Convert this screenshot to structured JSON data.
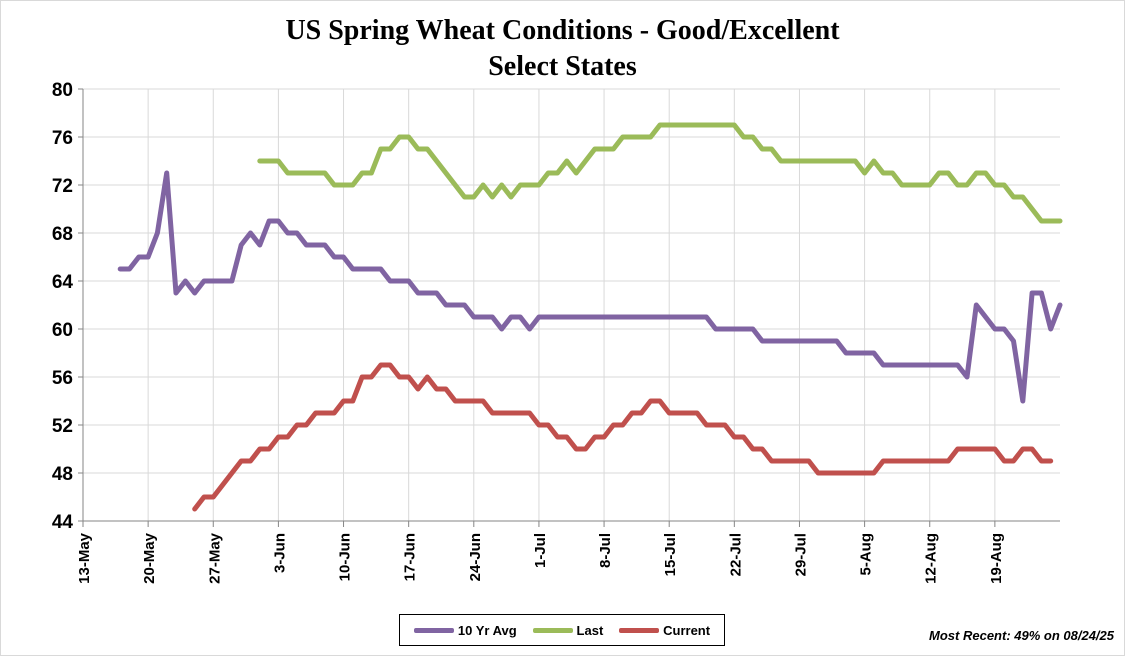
{
  "colors": {
    "avg10": "#8064a2",
    "last": "#9bbb59",
    "current": "#c0504d",
    "grid": "#d9d9d9",
    "axis": "#868686"
  },
  "note": "Most Recent: 49% on 08/24/25",
  "chart_data": {
    "type": "line",
    "title": "US Spring Wheat Conditions - Good/Excellent",
    "subtitle": "Select States",
    "xlabel": "",
    "ylabel": "",
    "x_is_days_from_may13": true,
    "xlim": [
      0,
      104
    ],
    "ylim": [
      44,
      80
    ],
    "y_ticks": [
      44,
      48,
      52,
      56,
      60,
      64,
      68,
      72,
      76,
      80
    ],
    "x_ticks": [
      {
        "label": "13-May",
        "day": 0
      },
      {
        "label": "20-May",
        "day": 7
      },
      {
        "label": "27-May",
        "day": 14
      },
      {
        "label": "3-Jun",
        "day": 21
      },
      {
        "label": "10-Jun",
        "day": 28
      },
      {
        "label": "17-Jun",
        "day": 35
      },
      {
        "label": "24-Jun",
        "day": 42
      },
      {
        "label": "1-Jul",
        "day": 49
      },
      {
        "label": "8-Jul",
        "day": 56
      },
      {
        "label": "15-Jul",
        "day": 63
      },
      {
        "label": "22-Jul",
        "day": 70
      },
      {
        "label": "29-Jul",
        "day": 77
      },
      {
        "label": "5-Aug",
        "day": 84
      },
      {
        "label": "12-Aug",
        "day": 91
      },
      {
        "label": "19-Aug",
        "day": 98
      }
    ],
    "grid": true,
    "legend_position": "bottom",
    "series": [
      {
        "name": "10 Yr Avg",
        "key": "avg10",
        "points": [
          [
            4,
            65
          ],
          [
            5,
            65
          ],
          [
            6,
            66
          ],
          [
            7,
            66
          ],
          [
            8,
            68
          ],
          [
            9,
            73
          ],
          [
            10,
            63
          ],
          [
            11,
            64
          ],
          [
            12,
            63
          ],
          [
            13,
            64
          ],
          [
            14,
            64
          ],
          [
            15,
            64
          ],
          [
            16,
            64
          ],
          [
            17,
            67
          ],
          [
            18,
            68
          ],
          [
            19,
            67
          ],
          [
            20,
            69
          ],
          [
            21,
            69
          ],
          [
            22,
            68
          ],
          [
            23,
            68
          ],
          [
            24,
            67
          ],
          [
            25,
            67
          ],
          [
            26,
            67
          ],
          [
            27,
            66
          ],
          [
            28,
            66
          ],
          [
            29,
            65
          ],
          [
            30,
            65
          ],
          [
            31,
            65
          ],
          [
            32,
            65
          ],
          [
            33,
            64
          ],
          [
            34,
            64
          ],
          [
            35,
            64
          ],
          [
            36,
            63
          ],
          [
            37,
            63
          ],
          [
            38,
            63
          ],
          [
            39,
            62
          ],
          [
            40,
            62
          ],
          [
            41,
            62
          ],
          [
            42,
            61
          ],
          [
            43,
            61
          ],
          [
            44,
            61
          ],
          [
            45,
            60
          ],
          [
            46,
            61
          ],
          [
            47,
            61
          ],
          [
            48,
            60
          ],
          [
            49,
            61
          ],
          [
            50,
            61
          ],
          [
            51,
            61
          ],
          [
            52,
            61
          ],
          [
            53,
            61
          ],
          [
            54,
            61
          ],
          [
            55,
            61
          ],
          [
            56,
            61
          ],
          [
            57,
            61
          ],
          [
            58,
            61
          ],
          [
            59,
            61
          ],
          [
            60,
            61
          ],
          [
            61,
            61
          ],
          [
            62,
            61
          ],
          [
            63,
            61
          ],
          [
            64,
            61
          ],
          [
            65,
            61
          ],
          [
            66,
            61
          ],
          [
            67,
            61
          ],
          [
            68,
            60
          ],
          [
            69,
            60
          ],
          [
            70,
            60
          ],
          [
            71,
            60
          ],
          [
            72,
            60
          ],
          [
            73,
            59
          ],
          [
            74,
            59
          ],
          [
            75,
            59
          ],
          [
            76,
            59
          ],
          [
            77,
            59
          ],
          [
            78,
            59
          ],
          [
            79,
            59
          ],
          [
            80,
            59
          ],
          [
            81,
            59
          ],
          [
            82,
            58
          ],
          [
            83,
            58
          ],
          [
            84,
            58
          ],
          [
            85,
            58
          ],
          [
            86,
            57
          ],
          [
            87,
            57
          ],
          [
            88,
            57
          ],
          [
            89,
            57
          ],
          [
            90,
            57
          ],
          [
            91,
            57
          ],
          [
            92,
            57
          ],
          [
            93,
            57
          ],
          [
            94,
            57
          ],
          [
            95,
            56
          ],
          [
            96,
            62
          ],
          [
            97,
            61
          ],
          [
            98,
            60
          ],
          [
            99,
            60
          ],
          [
            100,
            59
          ],
          [
            101,
            54
          ],
          [
            102,
            63
          ],
          [
            103,
            63
          ],
          [
            104,
            60
          ],
          [
            105,
            62
          ]
        ]
      },
      {
        "name": "Last",
        "key": "last",
        "points": [
          [
            19,
            74
          ],
          [
            20,
            74
          ],
          [
            21,
            74
          ],
          [
            22,
            73
          ],
          [
            23,
            73
          ],
          [
            24,
            73
          ],
          [
            25,
            73
          ],
          [
            26,
            73
          ],
          [
            27,
            72
          ],
          [
            28,
            72
          ],
          [
            29,
            72
          ],
          [
            30,
            73
          ],
          [
            31,
            73
          ],
          [
            32,
            75
          ],
          [
            33,
            75
          ],
          [
            34,
            76
          ],
          [
            35,
            76
          ],
          [
            36,
            75
          ],
          [
            37,
            75
          ],
          [
            38,
            74
          ],
          [
            39,
            73
          ],
          [
            40,
            72
          ],
          [
            41,
            71
          ],
          [
            42,
            71
          ],
          [
            43,
            72
          ],
          [
            44,
            71
          ],
          [
            45,
            72
          ],
          [
            46,
            71
          ],
          [
            47,
            72
          ],
          [
            48,
            72
          ],
          [
            49,
            72
          ],
          [
            50,
            73
          ],
          [
            51,
            73
          ],
          [
            52,
            74
          ],
          [
            53,
            73
          ],
          [
            54,
            74
          ],
          [
            55,
            75
          ],
          [
            56,
            75
          ],
          [
            57,
            75
          ],
          [
            58,
            76
          ],
          [
            59,
            76
          ],
          [
            60,
            76
          ],
          [
            61,
            76
          ],
          [
            62,
            77
          ],
          [
            63,
            77
          ],
          [
            64,
            77
          ],
          [
            65,
            77
          ],
          [
            66,
            77
          ],
          [
            67,
            77
          ],
          [
            68,
            77
          ],
          [
            69,
            77
          ],
          [
            70,
            77
          ],
          [
            71,
            76
          ],
          [
            72,
            76
          ],
          [
            73,
            75
          ],
          [
            74,
            75
          ],
          [
            75,
            74
          ],
          [
            76,
            74
          ],
          [
            77,
            74
          ],
          [
            78,
            74
          ],
          [
            79,
            74
          ],
          [
            80,
            74
          ],
          [
            81,
            74
          ],
          [
            82,
            74
          ],
          [
            83,
            74
          ],
          [
            84,
            73
          ],
          [
            85,
            74
          ],
          [
            86,
            73
          ],
          [
            87,
            73
          ],
          [
            88,
            72
          ],
          [
            89,
            72
          ],
          [
            90,
            72
          ],
          [
            91,
            72
          ],
          [
            92,
            73
          ],
          [
            93,
            73
          ],
          [
            94,
            72
          ],
          [
            95,
            72
          ],
          [
            96,
            73
          ],
          [
            97,
            73
          ],
          [
            98,
            72
          ],
          [
            99,
            72
          ],
          [
            100,
            71
          ],
          [
            101,
            71
          ],
          [
            102,
            70
          ],
          [
            103,
            69
          ],
          [
            104,
            69
          ],
          [
            105,
            69
          ]
        ]
      },
      {
        "name": "Current",
        "key": "current",
        "points": [
          [
            12,
            45
          ],
          [
            13,
            46
          ],
          [
            14,
            46
          ],
          [
            15,
            47
          ],
          [
            16,
            48
          ],
          [
            17,
            49
          ],
          [
            18,
            49
          ],
          [
            19,
            50
          ],
          [
            20,
            50
          ],
          [
            21,
            51
          ],
          [
            22,
            51
          ],
          [
            23,
            52
          ],
          [
            24,
            52
          ],
          [
            25,
            53
          ],
          [
            26,
            53
          ],
          [
            27,
            53
          ],
          [
            28,
            54
          ],
          [
            29,
            54
          ],
          [
            30,
            56
          ],
          [
            31,
            56
          ],
          [
            32,
            57
          ],
          [
            33,
            57
          ],
          [
            34,
            56
          ],
          [
            35,
            56
          ],
          [
            36,
            55
          ],
          [
            37,
            56
          ],
          [
            38,
            55
          ],
          [
            39,
            55
          ],
          [
            40,
            54
          ],
          [
            41,
            54
          ],
          [
            42,
            54
          ],
          [
            43,
            54
          ],
          [
            44,
            53
          ],
          [
            45,
            53
          ],
          [
            46,
            53
          ],
          [
            47,
            53
          ],
          [
            48,
            53
          ],
          [
            49,
            52
          ],
          [
            50,
            52
          ],
          [
            51,
            51
          ],
          [
            52,
            51
          ],
          [
            53,
            50
          ],
          [
            54,
            50
          ],
          [
            55,
            51
          ],
          [
            56,
            51
          ],
          [
            57,
            52
          ],
          [
            58,
            52
          ],
          [
            59,
            53
          ],
          [
            60,
            53
          ],
          [
            61,
            54
          ],
          [
            62,
            54
          ],
          [
            63,
            53
          ],
          [
            64,
            53
          ],
          [
            65,
            53
          ],
          [
            66,
            53
          ],
          [
            67,
            52
          ],
          [
            68,
            52
          ],
          [
            69,
            52
          ],
          [
            70,
            51
          ],
          [
            71,
            51
          ],
          [
            72,
            50
          ],
          [
            73,
            50
          ],
          [
            74,
            49
          ],
          [
            75,
            49
          ],
          [
            76,
            49
          ],
          [
            77,
            49
          ],
          [
            78,
            49
          ],
          [
            79,
            48
          ],
          [
            80,
            48
          ],
          [
            81,
            48
          ],
          [
            82,
            48
          ],
          [
            83,
            48
          ],
          [
            84,
            48
          ],
          [
            85,
            48
          ],
          [
            86,
            49
          ],
          [
            87,
            49
          ],
          [
            88,
            49
          ],
          [
            89,
            49
          ],
          [
            90,
            49
          ],
          [
            91,
            49
          ],
          [
            92,
            49
          ],
          [
            93,
            49
          ],
          [
            94,
            50
          ],
          [
            95,
            50
          ],
          [
            96,
            50
          ],
          [
            97,
            50
          ],
          [
            98,
            50
          ],
          [
            99,
            49
          ],
          [
            100,
            49
          ],
          [
            101,
            50
          ],
          [
            102,
            50
          ],
          [
            103,
            49
          ],
          [
            104,
            49
          ]
        ]
      }
    ]
  }
}
